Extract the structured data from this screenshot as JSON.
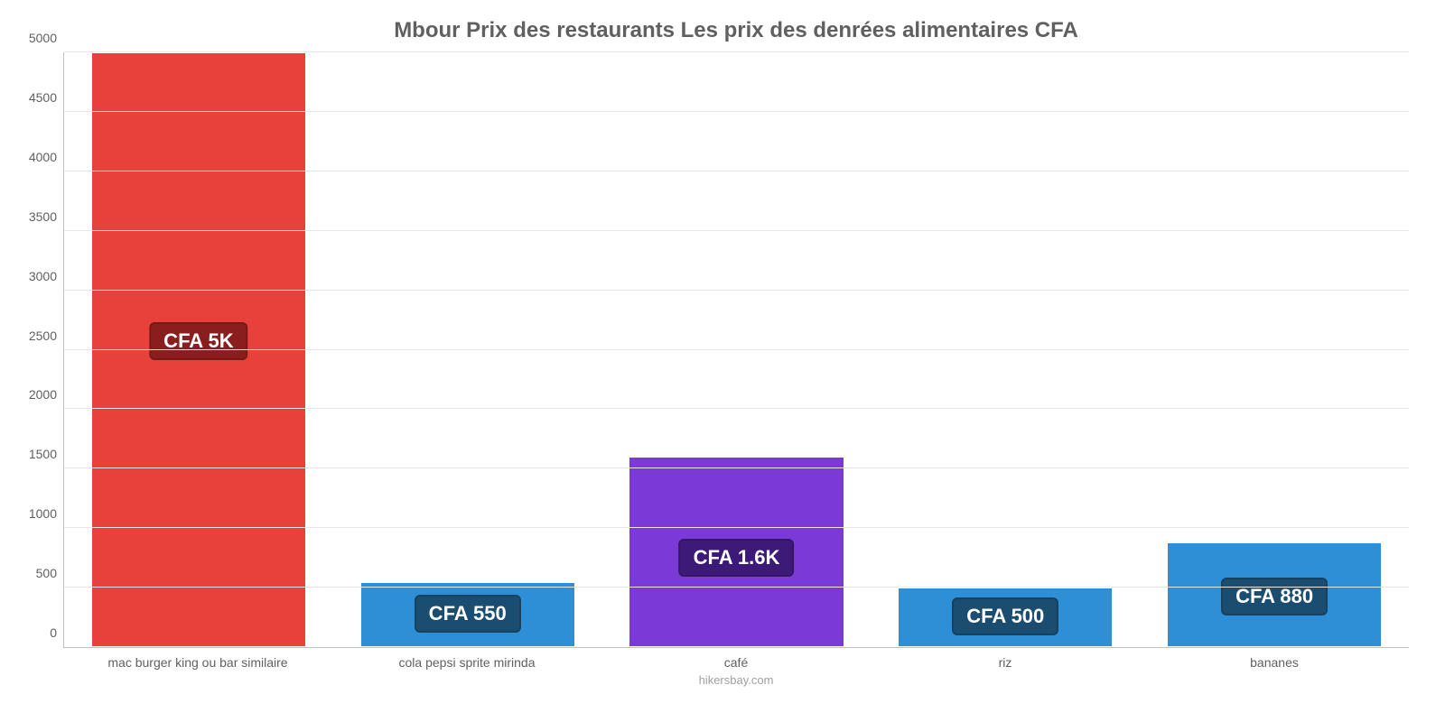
{
  "chart": {
    "type": "bar",
    "title": "Mbour Prix des restaurants Les prix des denrées alimentaires CFA",
    "title_fontsize": 24,
    "title_color": "#606060",
    "background_color": "#ffffff",
    "grid_color": "#e8e8e8",
    "axis_color": "#c0c0c0",
    "ylim": [
      0,
      5000
    ],
    "ytick_step": 500,
    "yticks": [
      0,
      500,
      1000,
      1500,
      2000,
      2500,
      3000,
      3500,
      4000,
      4500,
      5000
    ],
    "bar_width_pct": 80,
    "label_fontsize": 14,
    "label_color": "#606060",
    "categories": [
      "mac burger king ou bar similaire",
      "cola pepsi sprite mirinda",
      "café",
      "riz",
      "bananes"
    ],
    "values": [
      5000,
      550,
      1600,
      500,
      880
    ],
    "value_labels": [
      "CFA 5K",
      "CFA 550",
      "CFA 1.6K",
      "CFA 500",
      "CFA 880"
    ],
    "bar_colors": [
      "#e8403a",
      "#2e8fd6",
      "#7b3ad6",
      "#2e8fd6",
      "#2e8fd6"
    ],
    "badge_colors": [
      "#8a1e1e",
      "#1a4d70",
      "#3d1a78",
      "#1a4d70",
      "#1a4d70"
    ],
    "badge_fontsize": 22,
    "badge_text_color": "#ffffff",
    "footer": "hikersbay.com",
    "footer_color": "#a0a0a0"
  }
}
